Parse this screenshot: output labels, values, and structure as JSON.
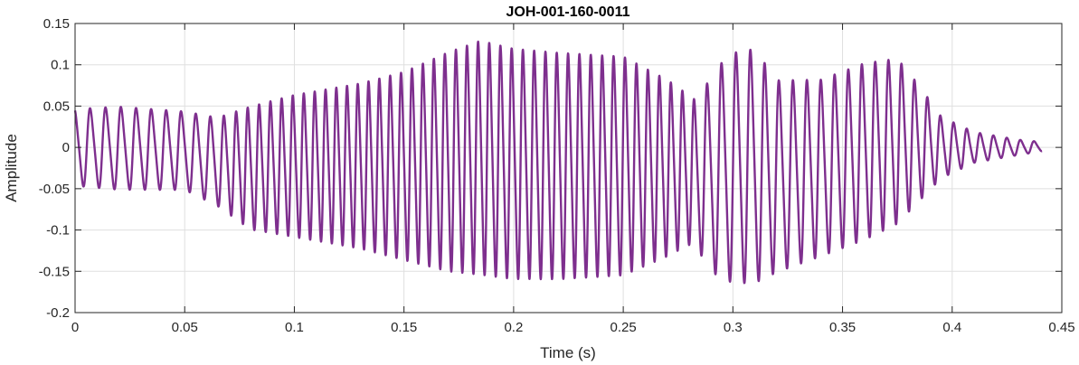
{
  "chart_data": {
    "type": "line",
    "title": "JOH-001-160-0011",
    "xlabel": "Time (s)",
    "ylabel": "Amplitude",
    "xlim": [
      0,
      0.45
    ],
    "ylim": [
      -0.2,
      0.15
    ],
    "xticks": [
      0,
      0.05,
      0.1,
      0.15,
      0.2,
      0.25,
      0.3,
      0.35,
      0.4,
      0.45
    ],
    "xtick_labels": [
      "0",
      "0.05",
      "0.1",
      "0.15",
      "0.2",
      "0.25",
      "0.3",
      "0.35",
      "0.4",
      "0.45"
    ],
    "yticks": [
      -0.2,
      -0.15,
      -0.1,
      -0.05,
      0,
      0.05,
      0.1,
      0.15
    ],
    "ytick_labels": [
      "-0.2",
      "-0.15",
      "-0.1",
      "-0.05",
      "0",
      "0.05",
      "0.1",
      "0.15"
    ],
    "grid": true,
    "line_color": "#7E2F8E",
    "signal_end": 0.441,
    "envelope": {
      "t": [
        0,
        0.02,
        0.05,
        0.065,
        0.08,
        0.1,
        0.13,
        0.15,
        0.17,
        0.185,
        0.2,
        0.22,
        0.25,
        0.27,
        0.28,
        0.285,
        0.29,
        0.3,
        0.31,
        0.32,
        0.34,
        0.36,
        0.375,
        0.385,
        0.395,
        0.41,
        0.43,
        0.441
      ],
      "upper": [
        0.05,
        0.053,
        0.047,
        0.04,
        0.055,
        0.07,
        0.085,
        0.1,
        0.125,
        0.14,
        0.13,
        0.125,
        0.12,
        0.09,
        0.07,
        0.06,
        0.1,
        0.125,
        0.13,
        0.09,
        0.09,
        0.11,
        0.115,
        0.08,
        0.04,
        0.02,
        0.01,
        0.007
      ],
      "lower": [
        -0.05,
        -0.055,
        -0.055,
        -0.075,
        -0.105,
        -0.115,
        -0.13,
        -0.145,
        -0.16,
        -0.165,
        -0.17,
        -0.17,
        -0.165,
        -0.14,
        -0.125,
        -0.135,
        -0.16,
        -0.175,
        -0.175,
        -0.16,
        -0.14,
        -0.12,
        -0.1,
        -0.07,
        -0.04,
        -0.02,
        -0.01,
        -0.005
      ]
    },
    "frequency_hz": [
      [
        0,
        140
      ],
      [
        0.06,
        150
      ],
      [
        0.075,
        190
      ],
      [
        0.12,
        205
      ],
      [
        0.2,
        195
      ],
      [
        0.28,
        190
      ],
      [
        0.29,
        150
      ],
      [
        0.35,
        160
      ],
      [
        0.38,
        170
      ],
      [
        0.441,
        160
      ]
    ]
  }
}
